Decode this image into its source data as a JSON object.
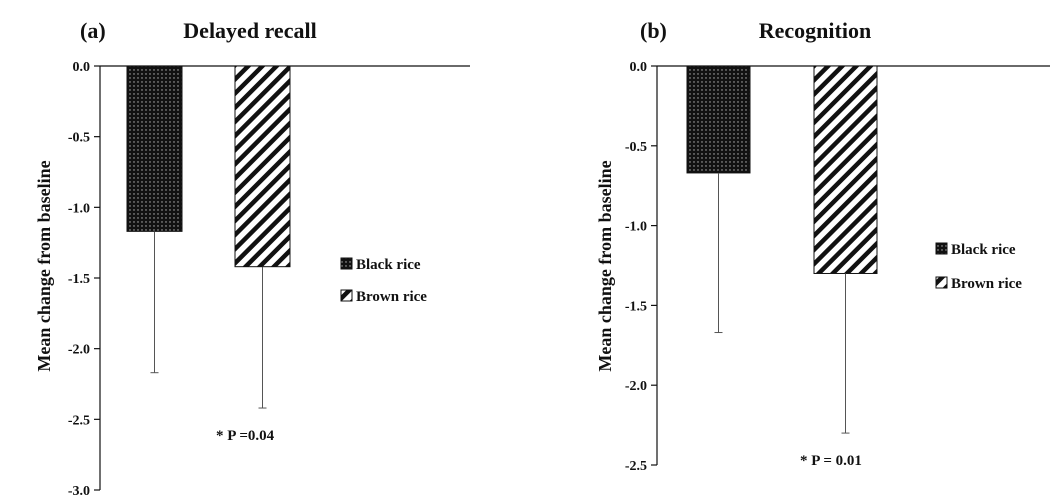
{
  "chart_data": [
    {
      "type": "bar",
      "panel_label": "(a)",
      "title": "Delayed recall",
      "ylabel": "Mean change from baseline",
      "xlabel": "",
      "ylim": [
        -3.0,
        0.0
      ],
      "yticks": [
        0.0,
        -0.5,
        -1.0,
        -1.5,
        -2.0,
        -2.5,
        -3.0
      ],
      "ytick_labels": [
        "0.0",
        "-0.5",
        "-1.0",
        "-1.5",
        "-2.0",
        "-2.5",
        "-3.0"
      ],
      "categories": [
        "Black rice",
        "Brown rice"
      ],
      "values": [
        -1.17,
        -1.42
      ],
      "error": [
        1.0,
        1.0
      ],
      "legend": {
        "entries": [
          "Black rice",
          "Brown rice"
        ],
        "placement": "right"
      },
      "annotation": "* P =0.04",
      "grid": false
    },
    {
      "type": "bar",
      "panel_label": "(b)",
      "title": "Recognition",
      "ylabel": "Mean change from baseline",
      "xlabel": "",
      "ylim": [
        -2.5,
        0.0
      ],
      "yticks": [
        0.0,
        -0.5,
        -1.0,
        -1.5,
        -2.0,
        -2.5
      ],
      "ytick_labels": [
        "0.0",
        "-0.5",
        "-1.0",
        "-1.5",
        "-2.0",
        "-2.5"
      ],
      "categories": [
        "Black rice",
        "Brown rice"
      ],
      "values": [
        -0.67,
        -1.3
      ],
      "error": [
        1.0,
        1.0
      ],
      "legend": {
        "entries": [
          "Black rice",
          "Brown rice"
        ],
        "placement": "right"
      },
      "annotation": "* P = 0.01",
      "grid": false
    }
  ],
  "styles": {
    "bar_colors": [
      "#111111",
      "#ffffff"
    ],
    "patterns": [
      "dotted",
      "diagonal-hatch"
    ],
    "axis_color": "#111111"
  }
}
